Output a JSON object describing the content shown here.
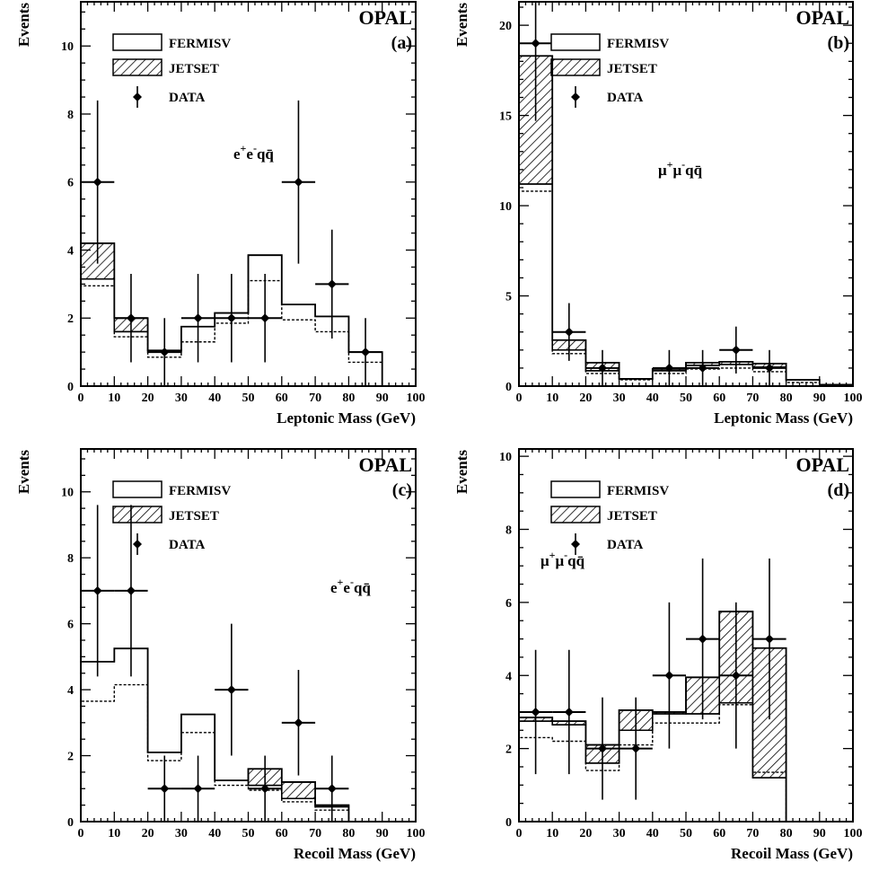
{
  "figure": {
    "experiment": "OPAL",
    "legend": {
      "fermisv": "FERMISV",
      "jetset": "JETSET",
      "data": "DATA"
    },
    "colors": {
      "ink": "#000000",
      "background": "#ffffff"
    }
  },
  "chart_data": [
    {
      "type": "histogram",
      "panel": "(a)",
      "title": "OPAL",
      "process": {
        "base": "e e qq",
        "sup1": "+",
        "sup2": "-"
      },
      "xlabel": "Leptonic Mass (GeV)",
      "ylabel": "Events",
      "xlim": [
        0,
        100
      ],
      "ylim": [
        0,
        11.3
      ],
      "xticks": [
        0,
        10,
        20,
        30,
        40,
        50,
        60,
        70,
        80,
        90,
        100
      ],
      "yticks": [
        0,
        2,
        4,
        6,
        8,
        10
      ],
      "bin_edges": [
        0,
        10,
        20,
        30,
        40,
        50,
        60,
        70,
        80,
        90
      ],
      "fermisv": [
        3.15,
        1.6,
        1.0,
        1.75,
        2.15,
        3.85,
        2.4,
        2.05,
        1.0
      ],
      "jetset": [
        1.05,
        0.4,
        0.05,
        0.0,
        0.0,
        0.0,
        0.0,
        0.0,
        0.0
      ],
      "dotted": [
        2.95,
        1.45,
        0.85,
        1.3,
        1.85,
        3.1,
        1.95,
        1.6,
        0.7
      ],
      "data": {
        "x": [
          5,
          15,
          25,
          35,
          45,
          55,
          65,
          75,
          85
        ],
        "y": [
          6,
          2,
          1,
          2,
          2,
          2,
          6,
          3,
          1
        ],
        "err_low": [
          2.4,
          1.3,
          1.0,
          1.3,
          1.3,
          1.3,
          2.4,
          1.6,
          1.0
        ],
        "err_high": [
          2.4,
          1.3,
          1.0,
          1.3,
          1.3,
          1.3,
          2.4,
          1.6,
          1.0
        ]
      }
    },
    {
      "type": "histogram",
      "panel": "(b)",
      "title": "OPAL",
      "process": {
        "base": "μ μ qq",
        "sup1": "+",
        "sup2": "-"
      },
      "xlabel": "Leptonic Mass (GeV)",
      "ylabel": "Events",
      "xlim": [
        0,
        100
      ],
      "ylim": [
        0,
        21.3
      ],
      "xticks": [
        0,
        10,
        20,
        30,
        40,
        50,
        60,
        70,
        80,
        90,
        100
      ],
      "yticks": [
        0,
        5,
        10,
        15,
        20
      ],
      "bin_edges": [
        0,
        10,
        20,
        30,
        40,
        50,
        60,
        70,
        80,
        90,
        100
      ],
      "fermisv": [
        11.2,
        2.0,
        0.85,
        0.4,
        0.85,
        1.15,
        1.2,
        1.05,
        0.35,
        0.08
      ],
      "jetset": [
        7.1,
        0.55,
        0.45,
        0.0,
        0.1,
        0.15,
        0.15,
        0.2,
        0.0,
        0.0
      ],
      "dotted": [
        10.8,
        1.8,
        0.7,
        0.35,
        0.7,
        0.95,
        1.0,
        0.8,
        0.2,
        0.05
      ],
      "data": {
        "x": [
          5,
          15,
          25,
          45,
          55,
          65,
          75
        ],
        "y": [
          19,
          3,
          1,
          1,
          1,
          2,
          1
        ],
        "err_low": [
          4.3,
          1.6,
          1.0,
          1.0,
          1.0,
          1.3,
          1.0
        ],
        "err_high": [
          4.3,
          1.6,
          1.0,
          1.0,
          1.0,
          1.3,
          1.0
        ]
      }
    },
    {
      "type": "histogram",
      "panel": "(c)",
      "title": "OPAL",
      "process": {
        "base": "e e qq",
        "sup1": "+",
        "sup2": "-"
      },
      "xlabel": "Recoil Mass (GeV)",
      "ylabel": "Events",
      "xlim": [
        0,
        100
      ],
      "ylim": [
        0,
        11.3
      ],
      "xticks": [
        0,
        10,
        20,
        30,
        40,
        50,
        60,
        70,
        80,
        90,
        100
      ],
      "yticks": [
        0,
        2,
        4,
        6,
        8,
        10
      ],
      "bin_edges": [
        0,
        10,
        20,
        30,
        40,
        50,
        60,
        70,
        80
      ],
      "fermisv": [
        4.85,
        5.25,
        2.1,
        3.25,
        1.25,
        1.1,
        0.7,
        0.45
      ],
      "jetset": [
        0.0,
        0.0,
        0.0,
        0.0,
        0.0,
        0.5,
        0.5,
        0.05
      ],
      "dotted": [
        3.65,
        4.15,
        1.85,
        2.7,
        1.1,
        0.95,
        0.6,
        0.35
      ],
      "data": {
        "x": [
          5,
          15,
          25,
          35,
          45,
          55,
          65,
          75
        ],
        "y": [
          7,
          7,
          1,
          1,
          4,
          1,
          3,
          1
        ],
        "err_low": [
          2.6,
          2.6,
          1.0,
          1.0,
          2.0,
          1.0,
          1.6,
          1.0
        ],
        "err_high": [
          2.6,
          2.6,
          1.0,
          1.0,
          2.0,
          1.0,
          1.6,
          1.0
        ]
      }
    },
    {
      "type": "histogram",
      "panel": "(d)",
      "title": "OPAL",
      "process": {
        "base": "μ μ qq",
        "sup1": "+",
        "sup2": "-"
      },
      "xlabel": "Recoil Mass (GeV)",
      "ylabel": "Events",
      "xlim": [
        0,
        100
      ],
      "ylim": [
        0,
        10.2
      ],
      "xticks": [
        0,
        10,
        20,
        30,
        40,
        50,
        60,
        70,
        80,
        90,
        100
      ],
      "yticks": [
        0,
        2,
        4,
        6,
        8,
        10
      ],
      "bin_edges": [
        0,
        10,
        20,
        30,
        40,
        50,
        60,
        70,
        80
      ],
      "fermisv": [
        2.75,
        2.65,
        1.6,
        2.5,
        2.95,
        2.95,
        3.25,
        1.2
      ],
      "jetset": [
        0.1,
        0.1,
        0.5,
        0.55,
        0.05,
        1.0,
        2.5,
        3.55
      ],
      "dotted": [
        2.3,
        2.2,
        1.4,
        2.1,
        2.7,
        2.7,
        3.2,
        1.35
      ],
      "data": {
        "x": [
          5,
          15,
          25,
          35,
          45,
          55,
          65,
          75
        ],
        "y": [
          3,
          3,
          2,
          2,
          4,
          5,
          4,
          5
        ],
        "err_low": [
          1.7,
          1.7,
          1.4,
          1.4,
          2.0,
          2.2,
          2.0,
          2.2
        ],
        "err_high": [
          1.7,
          1.7,
          1.4,
          1.4,
          2.0,
          2.2,
          2.0,
          2.2
        ]
      }
    }
  ]
}
